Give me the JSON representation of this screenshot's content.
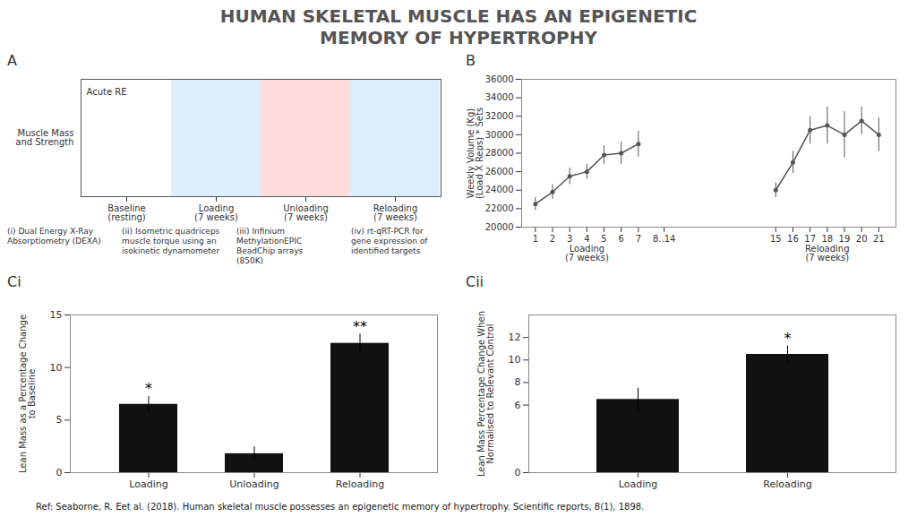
{
  "title": "HUMAN SKELETAL MUSCLE HAS AN EPIGENETIC\nMEMORY OF HYPERTROPHY",
  "caption": "Ref: Seaborne, R. Eet al. (2018). Human skeletal muscle possesses an epigenetic memory of hypertrophy. Scientific reports, 8(1), 1898.",
  "chart_data": [
    {
      "type": "diagram",
      "title": "A",
      "ylabel": "Muscle Mass\nand Strength",
      "categories": [
        "Baseline\n(resting)",
        "Loading\n(7 weeks)",
        "Unloading\n(7 weeks)",
        "Reloading\n(7 weeks)"
      ],
      "colors": [
        "#ffffff",
        "#ddeeff",
        "#ffdddd",
        "#ddeeff"
      ],
      "annotations": [
        "Acute RE"
      ],
      "methods": [
        "(i) Dual Energy X-Ray\nAbsorptiometry (DEXA)",
        "(ii) Isometric quadriceps\nmuscle torque using an\nisokinetic dynamometer",
        "(iii) Infinium\nMethylationEPIC\nBeadChip arrays\n(850K)",
        "(iv) rt-qRT-PCR for\ngene expression of\nidentified targets"
      ]
    },
    {
      "type": "line",
      "title": "B",
      "ylabel": "Weekly Volume (Kg)\n(Load X Reps) * Sets",
      "xlim": [
        0.2,
        22
      ],
      "xticks": [
        1,
        2,
        3,
        4,
        5,
        6,
        7,
        {
          "value": 8.5,
          "label": "8..14"
        },
        15,
        16,
        17,
        18,
        19,
        20,
        21
      ],
      "ylim": [
        20000,
        36000
      ],
      "yticks": [
        20000,
        22000,
        24000,
        26000,
        28000,
        30000,
        32000,
        34000,
        36000
      ],
      "grid": false,
      "series": [
        {
          "color": "#555555",
          "marker": "circle",
          "line_style": "solid",
          "x": [
            1,
            2,
            3,
            4,
            5,
            6,
            7
          ],
          "values": [
            22500,
            23800,
            25500,
            26000,
            27800,
            28000,
            29000
          ],
          "errors": [
            700,
            800,
            900,
            800,
            1000,
            1200,
            1400
          ]
        },
        {
          "color": "#555555",
          "marker": "circle",
          "line_style": "solid",
          "x": [
            15,
            16,
            17,
            18,
            19,
            20,
            21
          ],
          "values": [
            24000,
            27000,
            30500,
            31000,
            30000,
            31500,
            30000
          ],
          "errors": [
            800,
            1200,
            1500,
            2000,
            2500,
            1500,
            1800
          ]
        }
      ],
      "annotations": [
        {
          "text": "Loading\n(7 weeks)",
          "x": 4
        },
        {
          "text": "Reloading\n(7 weeks)",
          "x": 18
        }
      ]
    },
    {
      "type": "bar",
      "title": "Ci",
      "ylabel": "Lean Mass as a Percentage Change\nto Baseline",
      "categories": [
        "Loading",
        "Unloading",
        "Reloading"
      ],
      "values": [
        6.5,
        1.8,
        12.3
      ],
      "errors": [
        0.75,
        0.65,
        0.9
      ],
      "color": "#111111",
      "ylim": [
        0,
        15
      ],
      "yticks": [
        0,
        5,
        10,
        15
      ],
      "grid": false,
      "annotations": [
        {
          "category": "Loading",
          "text": "*"
        },
        {
          "category": "Reloading",
          "text": "**"
        }
      ]
    },
    {
      "type": "bar",
      "title": "Cii",
      "ylabel": "Lean Mass Percentage Change When\nNormalised to Relevant Control",
      "categories": [
        "Loading",
        "Reloading"
      ],
      "values": [
        6.5,
        10.5
      ],
      "errors": [
        1.0,
        0.75
      ],
      "color": "#111111",
      "ylim": [
        0,
        14
      ],
      "yticks": [
        0,
        6,
        8,
        10,
        12
      ],
      "grid": false,
      "annotations": [
        {
          "category": "Reloading",
          "text": "*"
        }
      ]
    }
  ]
}
